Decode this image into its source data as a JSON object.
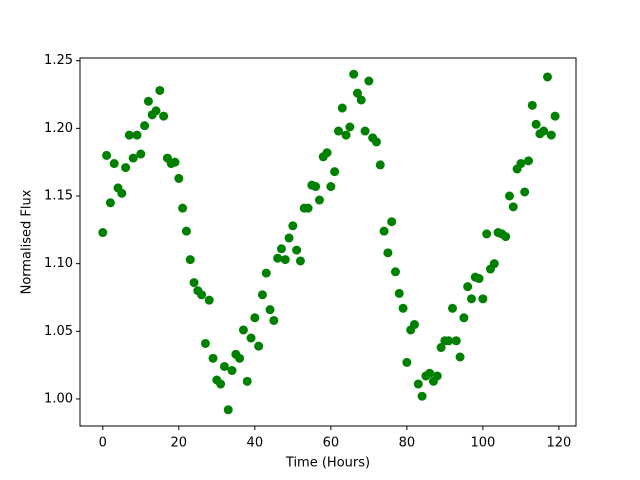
{
  "chart_data": {
    "type": "scatter",
    "xlabel": "Time (Hours)",
    "ylabel": "Normalised Flux",
    "color": "#008000",
    "x": [
      0,
      1,
      2,
      3,
      4,
      5,
      6,
      7,
      8,
      9,
      10,
      11,
      12,
      13,
      14,
      15,
      16,
      17,
      18,
      19,
      20,
      21,
      22,
      23,
      24,
      25,
      26,
      27,
      28,
      29,
      30,
      31,
      32,
      33,
      34,
      35,
      36,
      37,
      38,
      39,
      40,
      41,
      42,
      43,
      44,
      45,
      46,
      47,
      48,
      49,
      50,
      51,
      52,
      53,
      54,
      55,
      56,
      57,
      58,
      59,
      60,
      61,
      62,
      63,
      64,
      65,
      66,
      67,
      68,
      69,
      70,
      71,
      72,
      73,
      74,
      75,
      76,
      77,
      78,
      79,
      80,
      81,
      82,
      83,
      84,
      85,
      86,
      87,
      88,
      89,
      90,
      91,
      92,
      93,
      94,
      95,
      96,
      97,
      98,
      99,
      100,
      101,
      102,
      103,
      104,
      105,
      106,
      107,
      108,
      109,
      110,
      111,
      112,
      113,
      114,
      115,
      116,
      117,
      118,
      119
    ],
    "y": [
      1.123,
      1.18,
      1.145,
      1.174,
      1.156,
      1.152,
      1.171,
      1.195,
      1.178,
      1.195,
      1.181,
      1.202,
      1.22,
      1.21,
      1.213,
      1.228,
      1.209,
      1.178,
      1.174,
      1.175,
      1.163,
      1.141,
      1.124,
      1.103,
      1.086,
      1.08,
      1.077,
      1.041,
      1.073,
      1.03,
      1.014,
      1.011,
      1.024,
      0.992,
      1.021,
      1.033,
      1.03,
      1.051,
      1.013,
      1.045,
      1.06,
      1.039,
      1.077,
      1.093,
      1.066,
      1.058,
      1.104,
      1.111,
      1.103,
      1.119,
      1.128,
      1.11,
      1.102,
      1.141,
      1.141,
      1.158,
      1.157,
      1.147,
      1.179,
      1.182,
      1.157,
      1.168,
      1.198,
      1.215,
      1.195,
      1.201,
      1.24,
      1.226,
      1.221,
      1.198,
      1.235,
      1.193,
      1.19,
      1.173,
      1.124,
      1.108,
      1.131,
      1.094,
      1.078,
      1.067,
      1.027,
      1.051,
      1.055,
      1.011,
      1.002,
      1.017,
      1.019,
      1.013,
      1.017,
      1.038,
      1.043,
      1.043,
      1.067,
      1.043,
      1.031,
      1.06,
      1.083,
      1.074,
      1.09,
      1.089,
      1.074,
      1.122,
      1.096,
      1.1,
      1.123,
      1.122,
      1.12,
      1.15,
      1.142,
      1.17,
      1.174,
      1.153,
      1.176,
      1.217,
      1.203,
      1.196,
      1.198,
      1.238,
      1.195,
      1.209
    ],
    "xlim": [
      -6,
      124.5
    ],
    "ylim": [
      0.98,
      1.252
    ],
    "xticks": [
      0,
      20,
      40,
      60,
      80,
      100,
      120
    ],
    "yticks": [
      {
        "value": 1.0,
        "label": "1.00"
      },
      {
        "value": 1.05,
        "label": "1.05"
      },
      {
        "value": 1.1,
        "label": "1.10"
      },
      {
        "value": 1.15,
        "label": "1.15"
      },
      {
        "value": 1.2,
        "label": "1.20"
      },
      {
        "value": 1.25,
        "label": "1.25"
      }
    ]
  }
}
